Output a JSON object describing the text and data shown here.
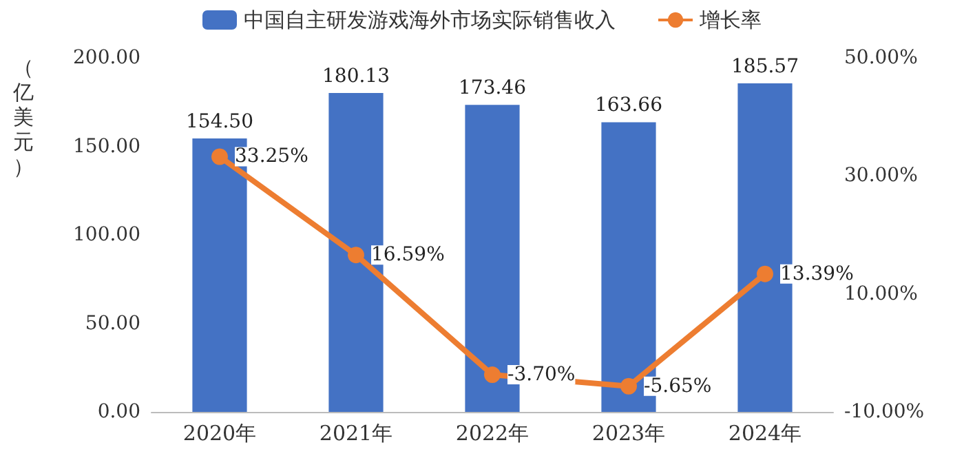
{
  "chart_data": {
    "type": "bar",
    "ylabel": "（亿美元）",
    "categories": [
      "2020年",
      "2021年",
      "2022年",
      "2023年",
      "2024年"
    ],
    "series": [
      {
        "name": "中国自主研发游戏海外市场实际销售收入",
        "color": "#4472c4",
        "values": [
          154.5,
          180.13,
          173.46,
          163.66,
          185.57
        ],
        "value_labels": [
          "154.50",
          "180.13",
          "173.46",
          "163.66",
          "185.57"
        ]
      },
      {
        "name": "增长率",
        "type": "line",
        "axis": "y2",
        "color": "#ed7d31",
        "values": [
          33.25,
          16.59,
          -3.7,
          -5.65,
          13.39
        ],
        "value_labels": [
          "33.25%",
          "16.59%",
          "-3.70%",
          "-5.65%",
          "13.39%"
        ]
      }
    ],
    "ylim": [
      0,
      200
    ],
    "yticks": [
      {
        "value": 0,
        "label": "0.00"
      },
      {
        "value": 50,
        "label": "50.00"
      },
      {
        "value": 100,
        "label": "100.00"
      },
      {
        "value": 150,
        "label": "150.00"
      },
      {
        "value": 200,
        "label": "200.00"
      }
    ],
    "y2lim": [
      -10,
      50
    ],
    "y2ticks": [
      {
        "value": -10,
        "label": "-10.00%"
      },
      {
        "value": 10,
        "label": "10.00%"
      },
      {
        "value": 30,
        "label": "30.00%"
      },
      {
        "value": 50,
        "label": "50.00%"
      }
    ],
    "marker": "circle",
    "legend": "top",
    "grid": false
  }
}
